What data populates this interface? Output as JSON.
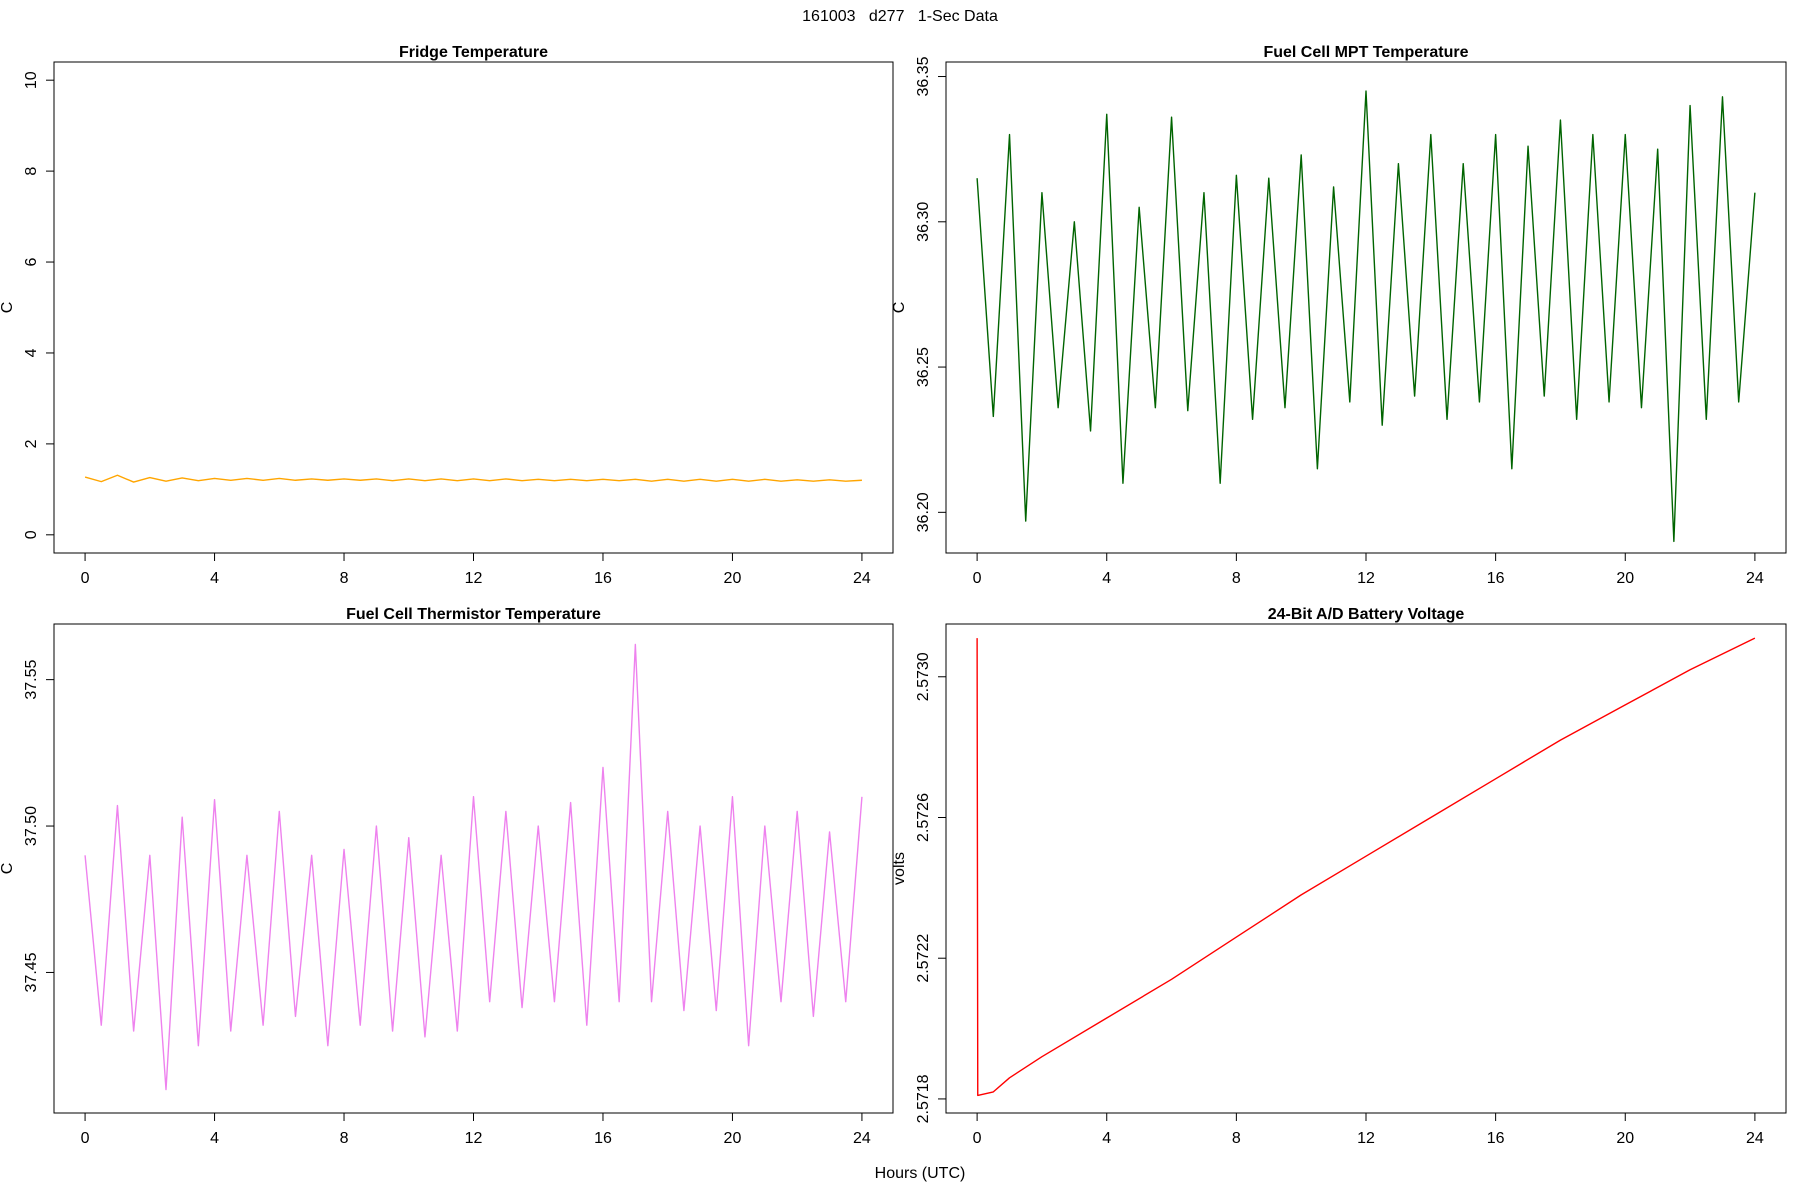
{
  "title": "161003   d277   1-Sec Data",
  "xlabel": "Hours (UTC)",
  "chart_data": [
    {
      "type": "line",
      "title": "Fridge Temperature",
      "ylabel": "C",
      "color": "#FFA500",
      "xlim": [
        -0.96,
        24.96
      ],
      "ylim": [
        -0.4,
        10.4
      ],
      "xticks": [
        0,
        4,
        8,
        12,
        16,
        20,
        24
      ],
      "yticks": [
        0,
        2,
        4,
        6,
        8,
        10
      ],
      "x": [
        0,
        0.5,
        1,
        1.5,
        2,
        2.5,
        3,
        3.5,
        4,
        4.5,
        5,
        5.5,
        6,
        6.5,
        7,
        7.5,
        8,
        8.5,
        9,
        9.5,
        10,
        10.5,
        11,
        11.5,
        12,
        12.5,
        13,
        13.5,
        14,
        14.5,
        15,
        15.5,
        16,
        16.5,
        17,
        17.5,
        18,
        18.5,
        19,
        19.5,
        20,
        20.5,
        21,
        21.5,
        22,
        22.5,
        23,
        23.5,
        24
      ],
      "values": [
        1.27,
        1.17,
        1.31,
        1.16,
        1.26,
        1.18,
        1.25,
        1.19,
        1.24,
        1.2,
        1.24,
        1.2,
        1.24,
        1.2,
        1.23,
        1.2,
        1.23,
        1.2,
        1.23,
        1.19,
        1.23,
        1.19,
        1.23,
        1.19,
        1.23,
        1.19,
        1.23,
        1.19,
        1.22,
        1.19,
        1.22,
        1.19,
        1.22,
        1.19,
        1.22,
        1.18,
        1.22,
        1.18,
        1.22,
        1.18,
        1.22,
        1.18,
        1.22,
        1.18,
        1.21,
        1.18,
        1.21,
        1.18,
        1.2
      ]
    },
    {
      "type": "line",
      "title": "Fuel Cell MPT Temperature",
      "ylabel": "C",
      "color": "#006400",
      "xlim": [
        -0.96,
        24.96
      ],
      "ylim": [
        36.186,
        36.355
      ],
      "xticks": [
        0,
        4,
        8,
        12,
        16,
        20,
        24
      ],
      "yticks": [
        {
          "value": 36.2,
          "label": "36.20"
        },
        {
          "value": 36.25,
          "label": "36.25"
        },
        {
          "value": 36.3,
          "label": "36.30"
        },
        {
          "value": 36.35,
          "label": "36.35"
        }
      ],
      "x": [
        0,
        0.5,
        1,
        1.5,
        2,
        2.5,
        3,
        3.5,
        4,
        4.5,
        5,
        5.5,
        6,
        6.5,
        7,
        7.5,
        8,
        8.5,
        9,
        9.5,
        10,
        10.5,
        11,
        11.5,
        12,
        12.5,
        13,
        13.5,
        14,
        14.5,
        15,
        15.5,
        16,
        16.5,
        17,
        17.5,
        18,
        18.5,
        19,
        19.5,
        20,
        20.5,
        21,
        21.5,
        22,
        22.5,
        23,
        23.5,
        24
      ],
      "values": [
        36.315,
        36.233,
        36.33,
        36.197,
        36.31,
        36.236,
        36.3,
        36.228,
        36.337,
        36.21,
        36.305,
        36.236,
        36.336,
        36.235,
        36.31,
        36.21,
        36.316,
        36.232,
        36.315,
        36.236,
        36.323,
        36.215,
        36.312,
        36.238,
        36.345,
        36.23,
        36.32,
        36.24,
        36.33,
        36.232,
        36.32,
        36.238,
        36.33,
        36.215,
        36.326,
        36.24,
        36.335,
        36.232,
        36.33,
        36.238,
        36.33,
        36.236,
        36.325,
        36.19,
        36.34,
        36.232,
        36.343,
        36.238,
        36.31
      ]
    },
    {
      "type": "line",
      "title": "Fuel Cell Thermistor Temperature",
      "ylabel": "C",
      "color": "#EE82EE",
      "xlim": [
        -0.96,
        24.96
      ],
      "ylim": [
        37.402,
        37.569
      ],
      "xticks": [
        0,
        4,
        8,
        12,
        16,
        20,
        24
      ],
      "yticks": [
        37.45,
        {
          "value": 37.5,
          "label": "37.50"
        },
        37.55
      ],
      "x": [
        0,
        0.5,
        1,
        1.5,
        2,
        2.5,
        3,
        3.5,
        4,
        4.5,
        5,
        5.5,
        6,
        6.5,
        7,
        7.5,
        8,
        8.5,
        9,
        9.5,
        10,
        10.5,
        11,
        11.5,
        12,
        12.5,
        13,
        13.5,
        14,
        14.5,
        15,
        15.5,
        16,
        16.5,
        17,
        17.5,
        18,
        18.5,
        19,
        19.5,
        20,
        20.5,
        21,
        21.5,
        22,
        22.5,
        23,
        23.5,
        24
      ],
      "values": [
        37.49,
        37.432,
        37.507,
        37.43,
        37.49,
        37.41,
        37.503,
        37.425,
        37.509,
        37.43,
        37.49,
        37.432,
        37.505,
        37.435,
        37.49,
        37.425,
        37.492,
        37.432,
        37.5,
        37.43,
        37.496,
        37.428,
        37.49,
        37.43,
        37.51,
        37.44,
        37.505,
        37.438,
        37.5,
        37.44,
        37.508,
        37.432,
        37.52,
        37.44,
        37.562,
        37.44,
        37.505,
        37.437,
        37.5,
        37.437,
        37.51,
        37.425,
        37.5,
        37.44,
        37.505,
        37.435,
        37.498,
        37.44,
        37.51
      ]
    },
    {
      "type": "line",
      "title": "24-Bit A/D Battery Voltage",
      "ylabel": "volts",
      "color": "#FF0000",
      "xlim": [
        -0.96,
        24.96
      ],
      "ylim": [
        2.57176,
        2.57315
      ],
      "xticks": [
        0,
        4,
        8,
        12,
        16,
        20,
        24
      ],
      "yticks": [
        2.5718,
        2.5722,
        2.5726,
        {
          "value": 2.573,
          "label": "2.5730"
        }
      ],
      "x": [
        0,
        0.02,
        0.5,
        1,
        2,
        4,
        6,
        8,
        10,
        12,
        14,
        16,
        18,
        20,
        22,
        24
      ],
      "values": [
        2.57311,
        2.57181,
        2.57182,
        2.57186,
        2.57192,
        2.57203,
        2.57214,
        2.57226,
        2.57238,
        2.57249,
        2.5726,
        2.57271,
        2.57282,
        2.57292,
        2.57302,
        2.57311
      ]
    }
  ]
}
